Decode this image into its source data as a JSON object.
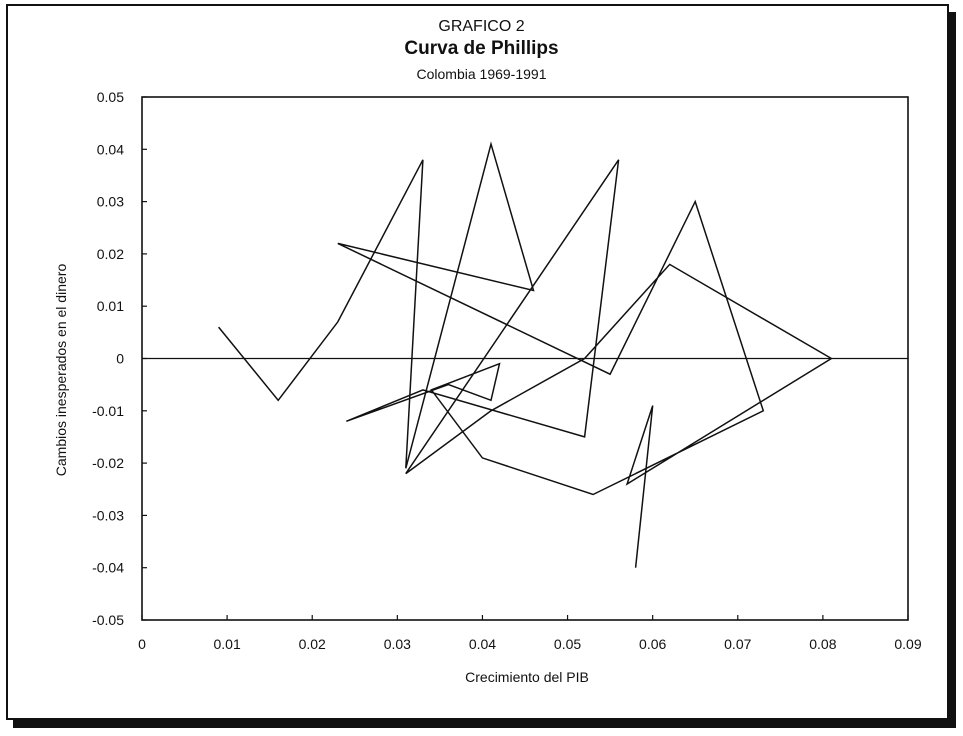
{
  "chart_data": {
    "type": "line",
    "header": "GRAFICO 2",
    "title": "Curva de Phillips",
    "subtitle": "Colombia 1969-1991",
    "xlabel": "Crecimiento del PIB",
    "ylabel": "Cambios inesperados en el dinero",
    "xlim": [
      0,
      0.09
    ],
    "ylim": [
      -0.05,
      0.05
    ],
    "xticks": [
      "0",
      "0.01",
      "0.02",
      "0.03",
      "0.04",
      "0.05",
      "0.06",
      "0.07",
      "0.08",
      "0.09"
    ],
    "yticks": [
      "0.05",
      "0.04",
      "0.03",
      "0.02",
      "0.01",
      "0",
      "-0.01",
      "-0.02",
      "-0.03",
      "-0.04",
      "-0.05"
    ],
    "reference_line_y": 0,
    "grid": false,
    "legend": "none",
    "series": [
      {
        "x": [
          0.009,
          0.016,
          0.023,
          0.033,
          0.031,
          0.041,
          0.046,
          0.023,
          0.055,
          0.065,
          0.073,
          0.053,
          0.04,
          0.034,
          0.042,
          0.041,
          0.036,
          0.024,
          0.033,
          0.052,
          0.056,
          0.031,
          0.041,
          0.052,
          0.062,
          0.081,
          0.057,
          0.06,
          0.058
        ],
        "y": [
          0.006,
          -0.008,
          0.007,
          0.038,
          -0.021,
          0.041,
          0.013,
          0.022,
          -0.003,
          0.03,
          -0.01,
          -0.026,
          -0.019,
          -0.006,
          -0.001,
          -0.008,
          -0.005,
          -0.012,
          -0.006,
          -0.015,
          0.038,
          -0.022,
          -0.01,
          0.0,
          0.018,
          0.0,
          -0.024,
          -0.009,
          -0.04
        ]
      }
    ]
  }
}
